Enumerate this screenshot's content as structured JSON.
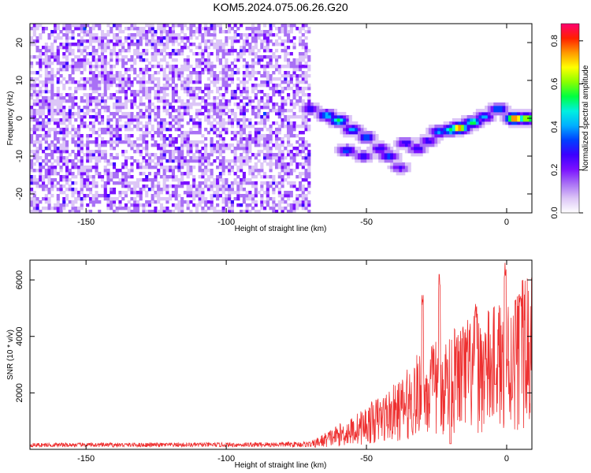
{
  "title": "KOM5.2024.075.06.26.G20",
  "chart_data": [
    {
      "type": "heatmap",
      "name": "spectrogram",
      "xlabel": "Height of straight line (km)",
      "ylabel": "Frequency (Hz)",
      "xlim": [
        -170,
        9
      ],
      "ylim": [
        -25,
        25
      ],
      "xticks": [
        -150,
        -100,
        -50,
        0
      ],
      "yticks": [
        -20,
        -10,
        0,
        10,
        20
      ],
      "colorbar": {
        "label": "Normalized spectral amplitude",
        "range": [
          0,
          0.88
        ],
        "ticks": [
          0.0,
          0.2,
          0.4,
          0.6,
          0.8
        ],
        "colormap": [
          "#ffffff",
          "#dcc6f7",
          "#a970f5",
          "#7a10ff",
          "#3b00ff",
          "#0040ff",
          "#00b0ff",
          "#00f0e0",
          "#00ff40",
          "#8aff00",
          "#ffff00",
          "#ff9900",
          "#ff2000",
          "#ff0070"
        ]
      },
      "noise_region_x": [
        -170,
        -70
      ],
      "signal_track": [
        {
          "x": -70,
          "y": 2.5,
          "a": 0.3
        },
        {
          "x": -64,
          "y": 0.8,
          "a": 0.45
        },
        {
          "x": -60,
          "y": -0.5,
          "a": 0.55
        },
        {
          "x": -55,
          "y": -3,
          "a": 0.4
        },
        {
          "x": -50,
          "y": -5,
          "a": 0.35
        },
        {
          "x": -45,
          "y": -8,
          "a": 0.3
        },
        {
          "x": -42,
          "y": -10,
          "a": 0.35
        },
        {
          "x": -38,
          "y": -13,
          "a": 0.25
        },
        {
          "x": -36,
          "y": -6.5,
          "a": 0.3
        },
        {
          "x": -32,
          "y": -8,
          "a": 0.3
        },
        {
          "x": -28,
          "y": -6,
          "a": 0.3
        },
        {
          "x": -24,
          "y": -3.5,
          "a": 0.4
        },
        {
          "x": -20,
          "y": -3,
          "a": 0.55
        },
        {
          "x": -17,
          "y": -2.5,
          "a": 0.8
        },
        {
          "x": -12,
          "y": -1,
          "a": 0.55
        },
        {
          "x": -8,
          "y": 0.5,
          "a": 0.4
        },
        {
          "x": -3,
          "y": 2.5,
          "a": 0.4
        },
        {
          "x": 3,
          "y": 0,
          "a": 0.85
        },
        {
          "x": 7,
          "y": 0,
          "a": 0.7
        }
      ],
      "signal_branch": [
        {
          "x": -57,
          "y": -8.5,
          "a": 0.35
        },
        {
          "x": -51,
          "y": -10,
          "a": 0.3
        }
      ]
    },
    {
      "type": "line",
      "name": "snr",
      "xlabel": "Height of straight line (km)",
      "ylabel": "SNR (10 * v/v)",
      "xlim": [
        -170,
        9
      ],
      "ylim": [
        0,
        6700
      ],
      "xticks": [
        -150,
        -100,
        -50,
        0
      ],
      "yticks": [
        2000,
        4000,
        6000
      ],
      "color": "#ee3030",
      "envelope": [
        {
          "x": -170,
          "y": 150
        },
        {
          "x": -100,
          "y": 160
        },
        {
          "x": -70,
          "y": 200
        },
        {
          "x": -62,
          "y": 600
        },
        {
          "x": -55,
          "y": 900
        },
        {
          "x": -45,
          "y": 1500
        },
        {
          "x": -38,
          "y": 1900
        },
        {
          "x": -32,
          "y": 2600
        },
        {
          "x": -25,
          "y": 3000
        },
        {
          "x": -15,
          "y": 3600
        },
        {
          "x": -5,
          "y": 3900
        },
        {
          "x": 0,
          "y": 4200
        },
        {
          "x": 9,
          "y": 4900
        }
      ],
      "peaks": [
        {
          "x": -30,
          "y": 5600
        },
        {
          "x": -24,
          "y": 6250
        },
        {
          "x": -20,
          "y": 5400
        },
        {
          "x": -11,
          "y": 5150
        },
        {
          "x": -0.5,
          "y": 6680
        },
        {
          "x": 5,
          "y": 5550
        }
      ],
      "troughs": [
        {
          "x": -4,
          "y": 2300
        },
        {
          "x": -20,
          "y": 200
        }
      ]
    }
  ]
}
